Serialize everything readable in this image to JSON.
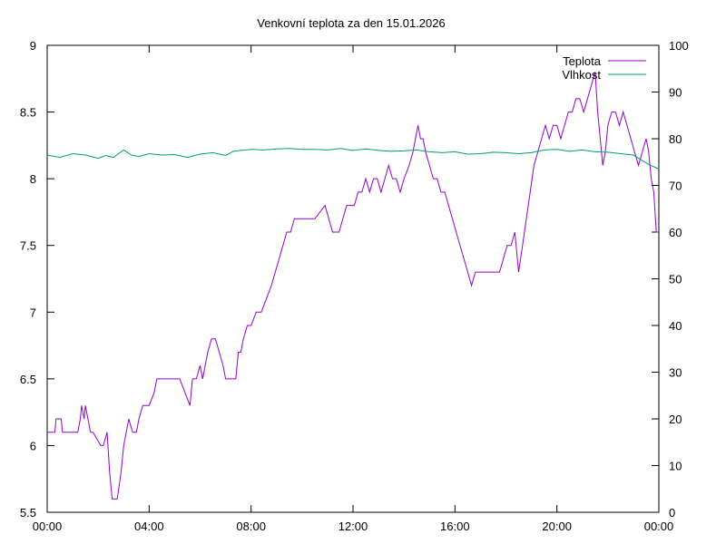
{
  "chart_data": {
    "type": "line",
    "title": "Venkovní teplota za den 15.01.2026",
    "x_ticks": [
      "00:00",
      "04:00",
      "08:00",
      "12:00",
      "16:00",
      "20:00",
      "00:00"
    ],
    "x_range_hours": [
      0,
      24
    ],
    "y_left": {
      "ticks": [
        "5.5",
        "6",
        "6.5",
        "7",
        "7.5",
        "8",
        "8.5",
        "9"
      ],
      "range": [
        5.5,
        9
      ]
    },
    "y_right": {
      "ticks": [
        "0",
        "10",
        "20",
        "30",
        "40",
        "50",
        "60",
        "70",
        "80",
        "90",
        "100"
      ],
      "range": [
        0,
        100
      ]
    },
    "grid": false,
    "legend_position": "top-right",
    "series": [
      {
        "name": "Teplota",
        "axis": "left",
        "color": "#9400d3",
        "x_hours": [
          0.0,
          0.3,
          0.35,
          0.55,
          0.6,
          1.2,
          1.3,
          1.35,
          1.45,
          1.5,
          1.6,
          1.7,
          1.8,
          2.1,
          2.2,
          2.35,
          2.45,
          2.55,
          2.6,
          2.75,
          2.9,
          3.0,
          3.1,
          3.2,
          3.35,
          3.5,
          3.6,
          3.75,
          3.9,
          4.0,
          4.2,
          4.3,
          4.4,
          4.6,
          4.8,
          5.0,
          5.2,
          5.4,
          5.6,
          5.7,
          5.85,
          6.0,
          6.1,
          6.2,
          6.3,
          6.45,
          6.6,
          6.75,
          6.9,
          7.0,
          7.15,
          7.4,
          7.5,
          7.6,
          7.7,
          7.85,
          8.0,
          8.2,
          8.4,
          8.6,
          8.8,
          8.95,
          9.1,
          9.25,
          9.4,
          9.55,
          9.7,
          9.85,
          10.0,
          10.5,
          10.9,
          11.05,
          11.2,
          11.45,
          11.6,
          11.75,
          11.9,
          12.05,
          12.2,
          12.35,
          12.5,
          12.65,
          12.8,
          12.95,
          13.1,
          13.25,
          13.4,
          13.55,
          13.7,
          13.85,
          14.0,
          14.2,
          14.35,
          14.45,
          14.55,
          14.65,
          14.75,
          14.85,
          15.0,
          15.15,
          15.3,
          15.45,
          15.6,
          15.75,
          15.9,
          16.05,
          16.2,
          16.35,
          16.5,
          16.65,
          16.8,
          16.95,
          17.1,
          17.6,
          17.75,
          17.9,
          18.05,
          18.2,
          18.35,
          18.5,
          18.65,
          18.8,
          18.95,
          19.1,
          19.25,
          19.4,
          19.55,
          19.7,
          19.85,
          20.0,
          20.15,
          20.3,
          20.45,
          20.6,
          20.75,
          20.9,
          21.05,
          21.2,
          21.35,
          21.5,
          21.6,
          21.7,
          21.8,
          21.9,
          22.0,
          22.15,
          22.3,
          22.45,
          22.6,
          22.75,
          22.9,
          23.05,
          23.2,
          23.35,
          23.5,
          23.6,
          23.7,
          23.8,
          23.9,
          24.0
        ],
        "values": [
          6.1,
          6.1,
          6.2,
          6.2,
          6.1,
          6.1,
          6.2,
          6.3,
          6.2,
          6.3,
          6.2,
          6.1,
          6.1,
          6.0,
          6.0,
          6.1,
          5.8,
          5.6,
          5.6,
          5.6,
          5.8,
          6.0,
          6.1,
          6.2,
          6.1,
          6.1,
          6.2,
          6.3,
          6.3,
          6.3,
          6.4,
          6.5,
          6.5,
          6.5,
          6.5,
          6.5,
          6.5,
          6.4,
          6.3,
          6.5,
          6.5,
          6.6,
          6.5,
          6.6,
          6.7,
          6.8,
          6.8,
          6.7,
          6.6,
          6.5,
          6.5,
          6.5,
          6.7,
          6.7,
          6.8,
          6.9,
          6.9,
          7.0,
          7.0,
          7.1,
          7.2,
          7.3,
          7.4,
          7.5,
          7.6,
          7.6,
          7.7,
          7.7,
          7.7,
          7.7,
          7.8,
          7.7,
          7.6,
          7.6,
          7.7,
          7.8,
          7.8,
          7.8,
          7.9,
          7.9,
          8.0,
          7.9,
          8.0,
          8.0,
          7.9,
          8.0,
          8.1,
          8.0,
          8.0,
          7.9,
          8.0,
          8.1,
          8.2,
          8.3,
          8.4,
          8.3,
          8.3,
          8.2,
          8.1,
          8.0,
          8.0,
          7.9,
          7.9,
          7.8,
          7.7,
          7.6,
          7.5,
          7.4,
          7.3,
          7.2,
          7.3,
          7.3,
          7.3,
          7.3,
          7.3,
          7.4,
          7.5,
          7.5,
          7.6,
          7.3,
          7.5,
          7.7,
          7.9,
          8.1,
          8.2,
          8.3,
          8.4,
          8.3,
          8.4,
          8.4,
          8.3,
          8.4,
          8.5,
          8.5,
          8.6,
          8.6,
          8.5,
          8.6,
          8.7,
          8.8,
          8.5,
          8.3,
          8.1,
          8.2,
          8.4,
          8.5,
          8.5,
          8.4,
          8.5,
          8.4,
          8.3,
          8.2,
          8.1,
          8.2,
          8.3,
          8.2,
          8.0,
          7.9,
          7.6,
          7.6
        ]
      },
      {
        "name": "Vlhkost",
        "axis": "right",
        "color": "#009e73",
        "x_hours": [
          0.0,
          0.5,
          1.0,
          1.5,
          2.0,
          2.3,
          2.6,
          3.0,
          3.3,
          3.6,
          4.0,
          4.5,
          5.0,
          5.5,
          6.0,
          6.5,
          7.0,
          7.3,
          7.6,
          8.0,
          8.5,
          9.0,
          9.5,
          10.0,
          10.5,
          11.0,
          11.5,
          12.0,
          12.5,
          13.0,
          13.5,
          14.0,
          14.5,
          15.0,
          15.5,
          16.0,
          16.5,
          17.0,
          17.5,
          18.0,
          18.5,
          19.0,
          19.5,
          20.0,
          20.5,
          21.0,
          21.5,
          22.0,
          22.5,
          23.0,
          23.3,
          23.6,
          24.0
        ],
        "values": [
          76.5,
          76.0,
          76.8,
          76.5,
          75.8,
          76.4,
          76.0,
          77.6,
          76.5,
          76.2,
          76.8,
          76.5,
          76.6,
          76.0,
          76.7,
          77.0,
          76.4,
          77.3,
          77.5,
          77.7,
          77.6,
          77.8,
          77.9,
          77.7,
          77.7,
          77.6,
          77.9,
          77.5,
          77.8,
          77.5,
          77.3,
          77.4,
          77.6,
          77.2,
          77.0,
          77.2,
          76.7,
          76.8,
          77.1,
          77.0,
          76.8,
          77.0,
          77.6,
          77.7,
          77.3,
          77.6,
          77.2,
          77.1,
          76.8,
          76.5,
          75.5,
          74.5,
          73.5
        ]
      }
    ]
  }
}
